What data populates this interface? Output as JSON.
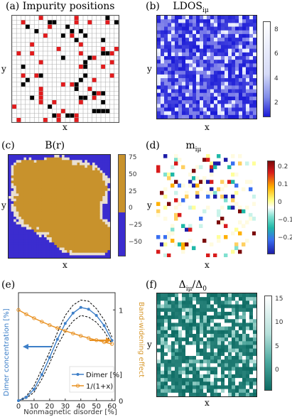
{
  "panels": {
    "a": {
      "title": "(a) Impurity positions",
      "xlabel": "x",
      "ylabel": "y"
    },
    "b": {
      "title": "(b)",
      "title_main": "LDOS",
      "title_sub": "iμ",
      "xlabel": "x",
      "ylabel": "y",
      "colorbar_ticks": [
        "8",
        "6",
        "4",
        "2"
      ],
      "colors": [
        "#1b1bd6",
        "#ffffff"
      ]
    },
    "c": {
      "title": "(c)",
      "title_main": "B(r)",
      "xlabel": "x",
      "ylabel": "y",
      "colorbar_ticks": [
        "75",
        "50",
        "25",
        "0",
        "−25",
        "−50"
      ],
      "colors": [
        "#c8922c",
        "#3b2ccf"
      ]
    },
    "d": {
      "title": "(d)",
      "title_main": "m",
      "title_sub": "iμ",
      "xlabel": "x",
      "ylabel": "y",
      "colorbar_ticks": [
        "0.2",
        "0.1",
        "0",
        "−0.1",
        "−0.2"
      ]
    },
    "e": {
      "title": "(e)",
      "xlabel": "Nonmagnetic disorder [%]",
      "ylabel_left": "Dimer concentration [%]",
      "ylabel_right": "Band-widening effect"
    },
    "f": {
      "title": "(f)",
      "title_main": "Δ",
      "title_sub": "iμ",
      "title_div": "/Δ",
      "title_sub2": "0",
      "xlabel": "x",
      "ylabel": "y",
      "colorbar_ticks": [
        "15",
        "10",
        "5",
        "0"
      ],
      "colors": [
        "#0d6b63",
        "#ffffff"
      ]
    }
  },
  "chart_data": [
    {
      "panel": "a",
      "type": "heatmap",
      "title": "(a) Impurity positions",
      "grid": true,
      "categories_cells": [
        "empty",
        "black impurity",
        "red impurity"
      ],
      "colors": {
        "black": "#000000",
        "red": "#e41a1c"
      }
    },
    {
      "panel": "b",
      "type": "heatmap",
      "colorbar_range": [
        0,
        9
      ]
    },
    {
      "panel": "c",
      "type": "heatmap",
      "colorbar_range": [
        -60,
        85
      ]
    },
    {
      "panel": "d",
      "type": "heatmap",
      "colorbar_range": [
        -0.27,
        0.27
      ]
    },
    {
      "panel": "e",
      "type": "line",
      "x": [
        0,
        5,
        10,
        15,
        20,
        25,
        30,
        35,
        40,
        45,
        50,
        55,
        60
      ],
      "xlim": [
        0,
        62
      ],
      "ylim_left": [
        0,
        9.5
      ],
      "ylim_right": [
        0,
        1.19
      ],
      "xticks": [
        "0",
        "10",
        "20",
        "30",
        "40",
        "50",
        "60"
      ],
      "yticks_right": [
        "0",
        "1"
      ],
      "series": [
        {
          "name": "Dimer [%]",
          "color": "#3d7fc8",
          "axis": "left",
          "values": [
            0,
            0.3,
            1.0,
            2.3,
            3.8,
            5.4,
            6.8,
            7.7,
            8.2,
            8.05,
            7.5,
            6.6,
            5.3
          ]
        },
        {
          "name": "1/(1+x)",
          "color": "#e89020",
          "axis": "right",
          "values": [
            1.0,
            0.952,
            0.909,
            0.87,
            0.833,
            0.8,
            0.769,
            0.741,
            0.714,
            0.69,
            0.667,
            0.645,
            0.625
          ]
        }
      ],
      "band_upper": [
        0,
        0.4,
        1.3,
        2.8,
        4.3,
        6.0,
        7.5,
        8.4,
        8.85,
        8.75,
        8.1,
        7.1,
        5.6
      ],
      "band_lower": [
        0,
        0.2,
        0.75,
        1.9,
        3.3,
        4.85,
        6.1,
        7.0,
        7.5,
        7.35,
        6.9,
        6.1,
        5.0
      ]
    },
    {
      "panel": "f",
      "type": "heatmap",
      "colorbar_range": [
        0,
        17
      ]
    }
  ]
}
